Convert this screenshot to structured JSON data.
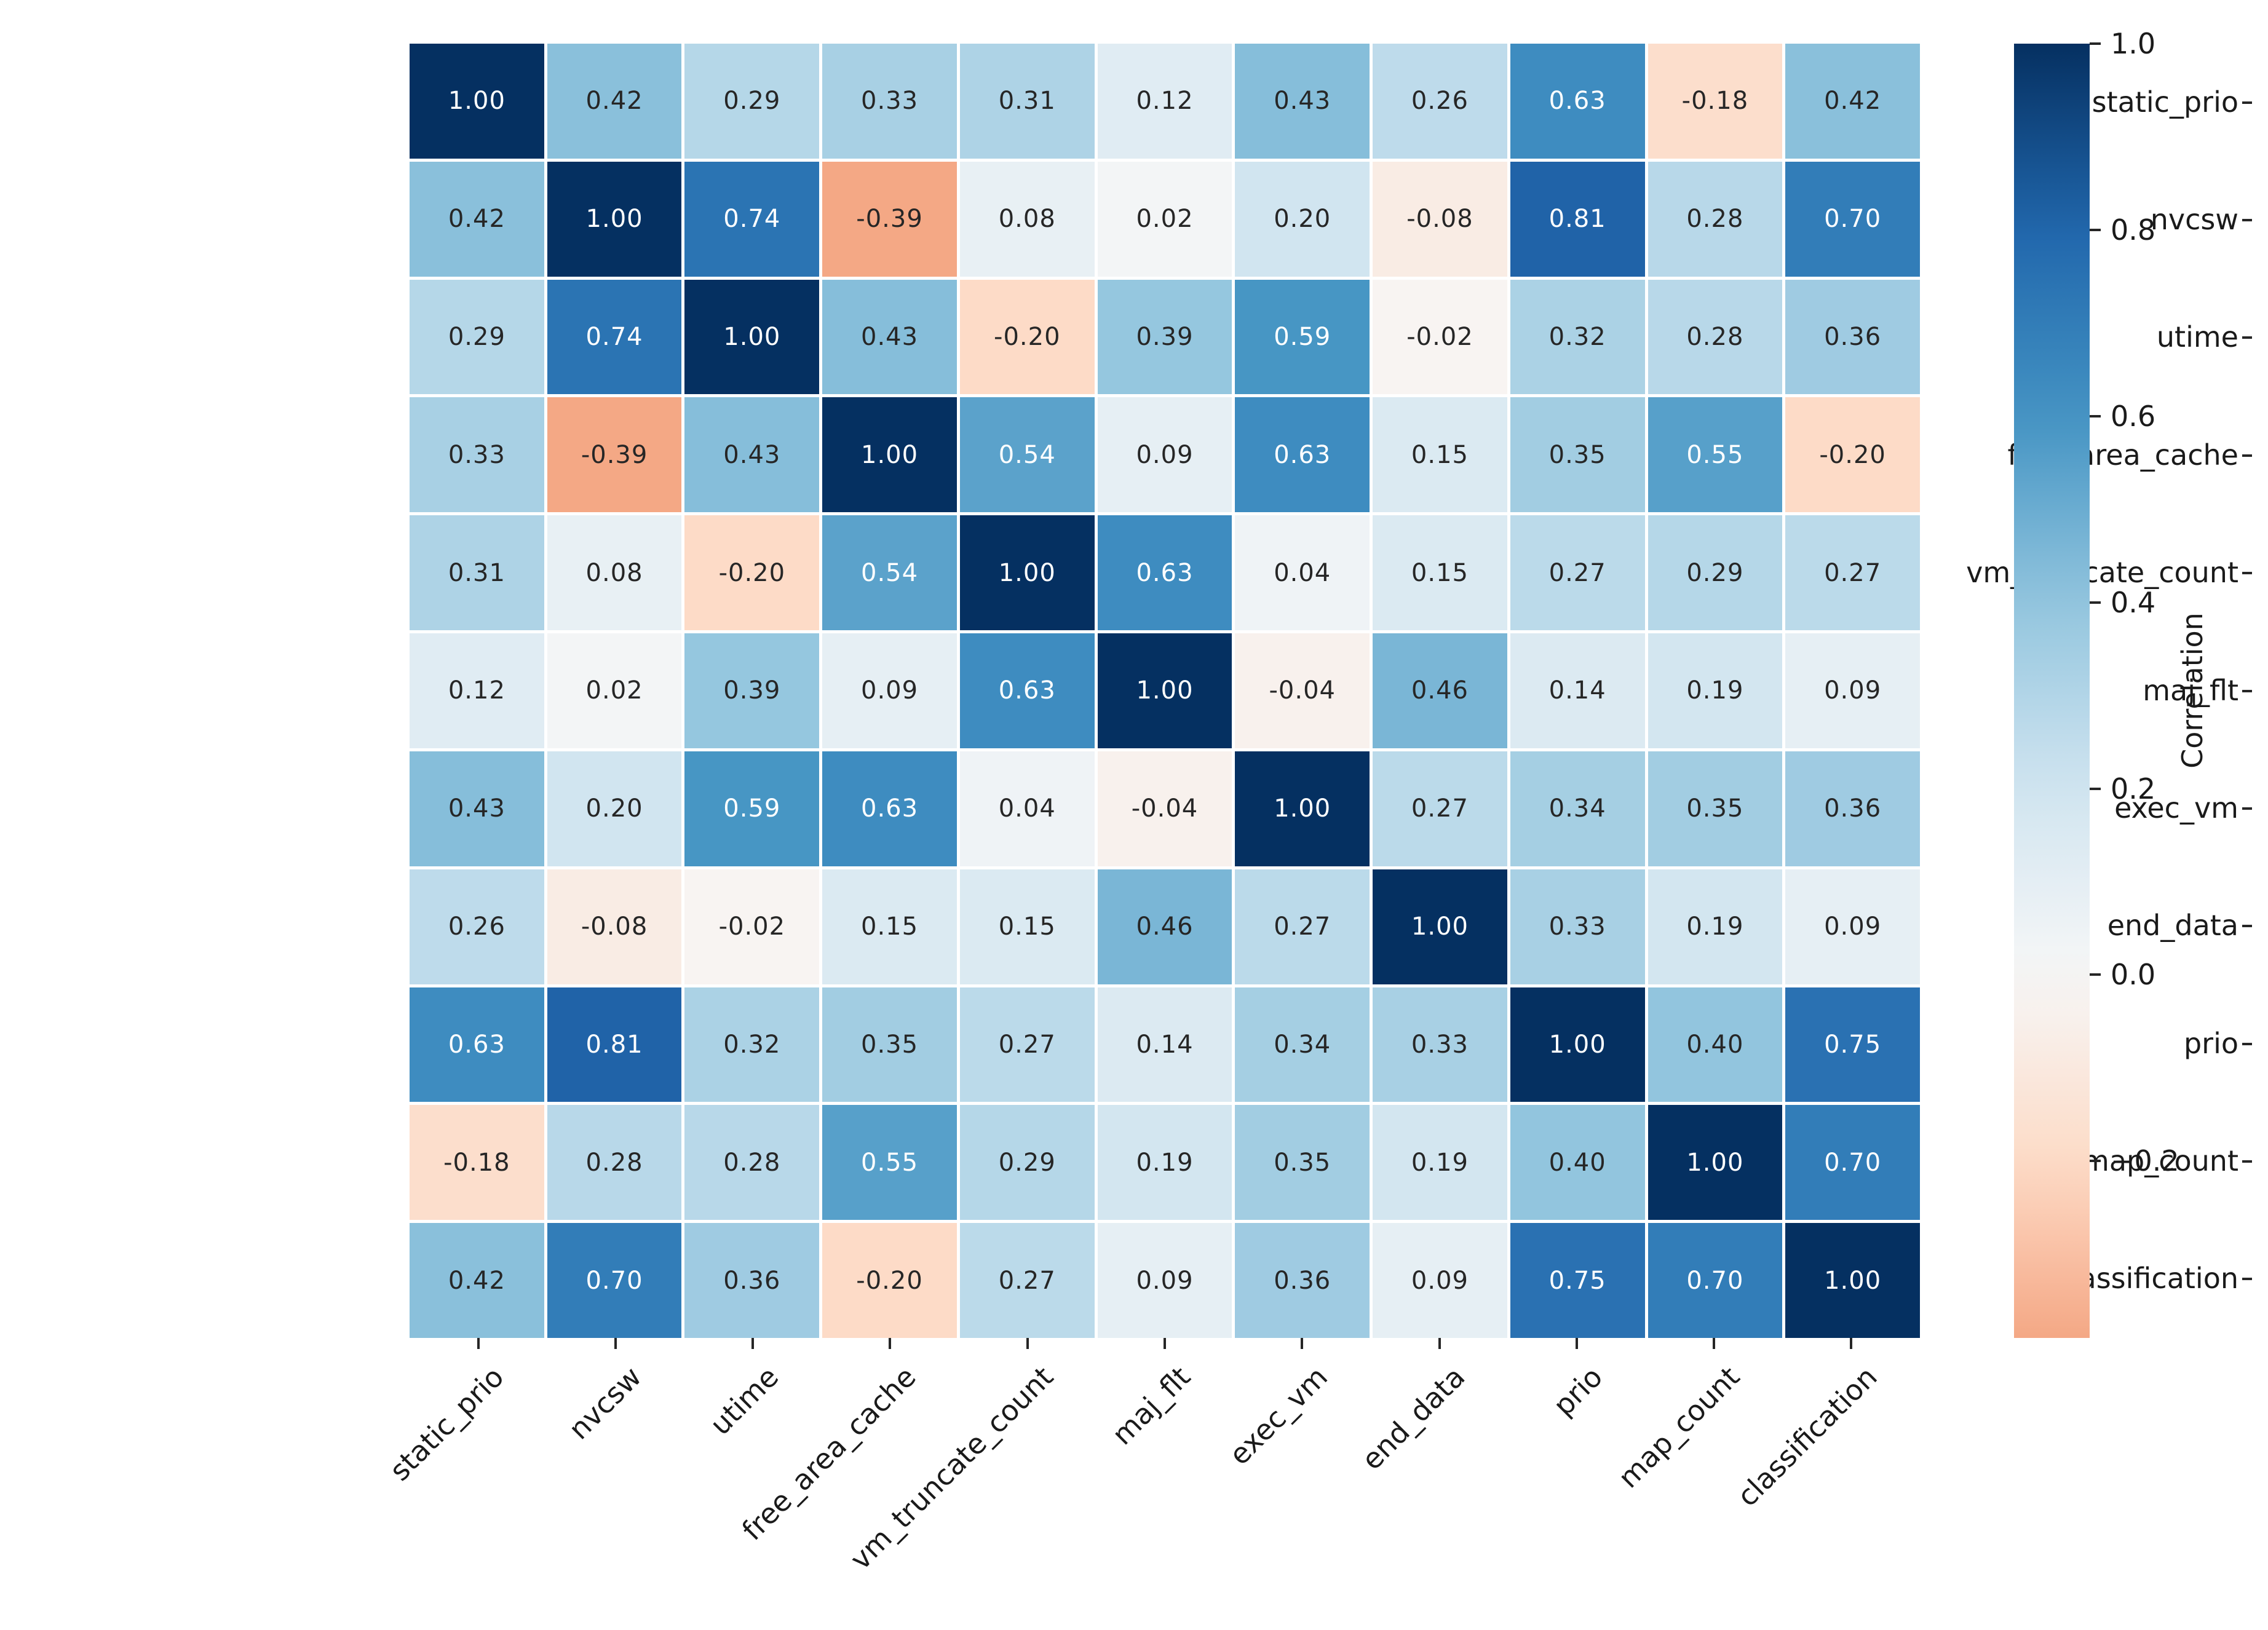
{
  "figure": {
    "background": "#ffffff"
  },
  "chart_data": {
    "type": "heatmap",
    "title": "",
    "variables": [
      "static_prio",
      "nvcsw",
      "utime",
      "free_area_cache",
      "vm_truncate_count",
      "maj_flt",
      "exec_vm",
      "end_data",
      "prio",
      "map_count",
      "classification"
    ],
    "x_tick_labels": [
      "static_prio",
      "nvcsw",
      "utime",
      "free_area_cache",
      "vm_truncate_count",
      "maj_flt",
      "exec_vm",
      "end_data",
      "prio",
      "map_count",
      "classification"
    ],
    "y_tick_labels": [
      "static_prio",
      "nvcsw",
      "utime",
      "free_area_cache",
      "vm_truncate_count",
      "maj_flt",
      "exec_vm",
      "end_data",
      "prio",
      "map_count",
      "classification"
    ],
    "matrix": [
      [
        1.0,
        0.42,
        0.29,
        0.33,
        0.31,
        0.12,
        0.43,
        0.26,
        0.63,
        -0.18,
        0.42
      ],
      [
        0.42,
        1.0,
        0.74,
        -0.39,
        0.08,
        0.02,
        0.2,
        -0.08,
        0.81,
        0.28,
        0.7
      ],
      [
        0.29,
        0.74,
        1.0,
        0.43,
        -0.2,
        0.39,
        0.59,
        -0.02,
        0.32,
        0.28,
        0.36
      ],
      [
        0.33,
        -0.39,
        0.43,
        1.0,
        0.54,
        0.09,
        0.63,
        0.15,
        0.35,
        0.55,
        -0.2
      ],
      [
        0.31,
        0.08,
        -0.2,
        0.54,
        1.0,
        0.63,
        0.04,
        0.15,
        0.27,
        0.29,
        0.27
      ],
      [
        0.12,
        0.02,
        0.39,
        0.09,
        0.63,
        1.0,
        -0.04,
        0.46,
        0.14,
        0.19,
        0.09
      ],
      [
        0.43,
        0.2,
        0.59,
        0.63,
        0.04,
        -0.04,
        1.0,
        0.27,
        0.34,
        0.35,
        0.36
      ],
      [
        0.26,
        -0.08,
        -0.02,
        0.15,
        0.15,
        0.46,
        0.27,
        1.0,
        0.33,
        0.19,
        0.09
      ],
      [
        0.63,
        0.81,
        0.32,
        0.35,
        0.27,
        0.14,
        0.34,
        0.33,
        1.0,
        0.4,
        0.75
      ],
      [
        -0.18,
        0.28,
        0.28,
        0.55,
        0.29,
        0.19,
        0.35,
        0.19,
        0.4,
        1.0,
        0.7
      ],
      [
        0.42,
        0.7,
        0.36,
        -0.2,
        0.27,
        0.09,
        0.36,
        0.09,
        0.75,
        0.7,
        1.0
      ]
    ],
    "annotation_decimals": 2,
    "grid_line_color": "#ffffff",
    "colorbar": {
      "label": "Correlation",
      "tick_labels": [
        "1.0",
        "0.8",
        "0.6",
        "0.4",
        "0.2",
        "0.0",
        "−0.2"
      ],
      "tick_values": [
        1.0,
        0.8,
        0.6,
        0.4,
        0.2,
        0.0,
        -0.2
      ],
      "vmin": -0.39,
      "vmax": 1.0,
      "side": "right"
    },
    "colormap": {
      "name": "RdBu",
      "center": 0,
      "stops": [
        {
          "f": 0.0,
          "color": "#67001f"
        },
        {
          "f": 0.1,
          "color": "#b2182b"
        },
        {
          "f": 0.2,
          "color": "#d6604d"
        },
        {
          "f": 0.3,
          "color": "#f4a582"
        },
        {
          "f": 0.4,
          "color": "#fddbc7"
        },
        {
          "f": 0.5,
          "color": "#f7f7f7"
        },
        {
          "f": 0.6,
          "color": "#d1e5f0"
        },
        {
          "f": 0.7,
          "color": "#92c5de"
        },
        {
          "f": 0.8,
          "color": "#4393c3"
        },
        {
          "f": 0.9,
          "color": "#2166ac"
        },
        {
          "f": 1.0,
          "color": "#053061"
        }
      ]
    },
    "text_colors": {
      "light": "#ffffff",
      "dark": "#262626",
      "white_text_threshold": 0.5
    },
    "layout": {
      "x_label_rotation_deg": 45,
      "legend_position": "right-colorbar",
      "grid": false
    }
  }
}
